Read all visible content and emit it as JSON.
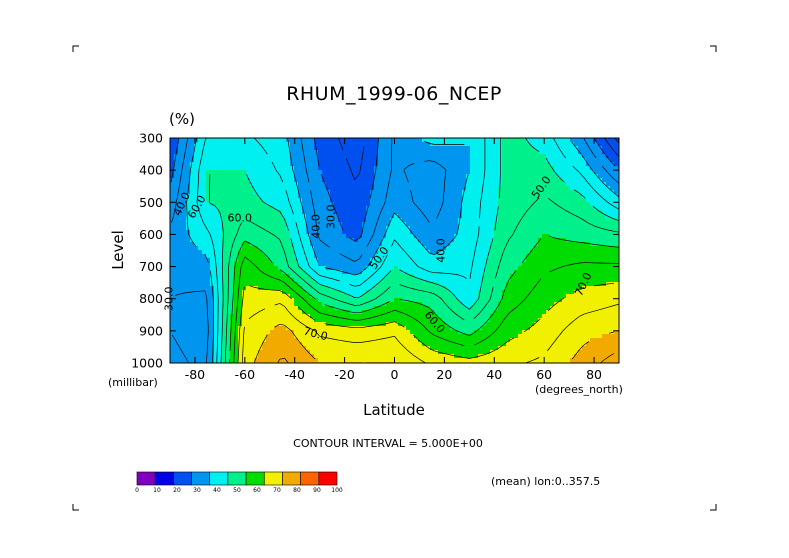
{
  "chart_data": {
    "type": "heatmap",
    "title": "RHUM_1999-06_NCEP",
    "units": "(%)",
    "xlabel": "Latitude",
    "ylabel": "Level",
    "x_units": "(degrees_north)",
    "y_units": "(millibar)",
    "xlim": [
      -90,
      90
    ],
    "ylim": [
      1000,
      300
    ],
    "xticks": [
      -80,
      -60,
      -40,
      -20,
      0,
      20,
      40,
      60,
      80
    ],
    "xtick_labels": [
      "-80",
      "-60",
      "-40",
      "-20",
      "0",
      "20",
      "40",
      "60",
      "80"
    ],
    "yticks": [
      300,
      400,
      500,
      600,
      700,
      800,
      900,
      1000
    ],
    "ytick_labels": [
      "300",
      "400",
      "500",
      "600",
      "700",
      "800",
      "900",
      "1000"
    ],
    "contour_interval_text": "CONTOUR INTERVAL = 5.000E+00",
    "footnote": "(mean) lon:0..357.5",
    "contour_labels": [
      {
        "text": "40.0",
        "x": -84,
        "y": 510,
        "angle": -65
      },
      {
        "text": "60.0",
        "x": -78,
        "y": 520,
        "angle": -60
      },
      {
        "text": "60.0",
        "x": -62,
        "y": 560,
        "angle": 0
      },
      {
        "text": "30.0",
        "x": -89,
        "y": 800,
        "angle": -90
      },
      {
        "text": "40.0",
        "x": -30,
        "y": 575,
        "angle": -90
      },
      {
        "text": "30.0",
        "x": -24,
        "y": 545,
        "angle": -90
      },
      {
        "text": "50.0",
        "x": -5,
        "y": 680,
        "angle": -55
      },
      {
        "text": "40.0",
        "x": 20,
        "y": 650,
        "angle": -90
      },
      {
        "text": "70.0",
        "x": -32,
        "y": 920,
        "angle": 15
      },
      {
        "text": "60.0",
        "x": 15,
        "y": 880,
        "angle": 50
      },
      {
        "text": "50.0",
        "x": 60,
        "y": 460,
        "angle": -55
      },
      {
        "text": "70.0",
        "x": 77,
        "y": 760,
        "angle": -65
      }
    ],
    "colorbar": {
      "levels": [
        0,
        10,
        20,
        30,
        40,
        50,
        60,
        70,
        80,
        90,
        100
      ],
      "labels": [
        "0",
        "10",
        "20",
        "30",
        "40",
        "50",
        "60",
        "70",
        "80",
        "90",
        "100"
      ],
      "colors": [
        "#7f00bf",
        "#0000e6",
        "#0050f0",
        "#0096f0",
        "#00f0f0",
        "#00f08c",
        "#00dc00",
        "#f0f000",
        "#f0aa00",
        "#ff6400",
        "#ff0000"
      ]
    },
    "grid": {
      "x": [
        -90,
        -75,
        -60,
        -45,
        -30,
        -15,
        0,
        15,
        30,
        45,
        60,
        75,
        90
      ],
      "p": [
        300,
        400,
        500,
        600,
        700,
        800,
        900,
        1000
      ],
      "values": [
        [
          25,
          46,
          46,
          42,
          28,
          22,
          36,
          42,
          40,
          52,
          48,
          36,
          18
        ],
        [
          28,
          50,
          50,
          44,
          30,
          24,
          36,
          32,
          40,
          52,
          52,
          44,
          30
        ],
        [
          32,
          50,
          52,
          48,
          32,
          26,
          38,
          32,
          42,
          52,
          56,
          52,
          42
        ],
        [
          36,
          44,
          58,
          54,
          34,
          28,
          44,
          36,
          42,
          54,
          60,
          58,
          56
        ],
        [
          36,
          38,
          68,
          58,
          40,
          36,
          50,
          42,
          44,
          58,
          64,
          66,
          66
        ],
        [
          35,
          34,
          72,
          74,
          58,
          50,
          60,
          58,
          46,
          62,
          68,
          72,
          74
        ],
        [
          35,
          33,
          76,
          82,
          74,
          72,
          74,
          64,
          58,
          68,
          72,
          78,
          80
        ],
        [
          36,
          34,
          78,
          86,
          80,
          80,
          80,
          74,
          72,
          74,
          76,
          82,
          88
        ]
      ]
    }
  }
}
